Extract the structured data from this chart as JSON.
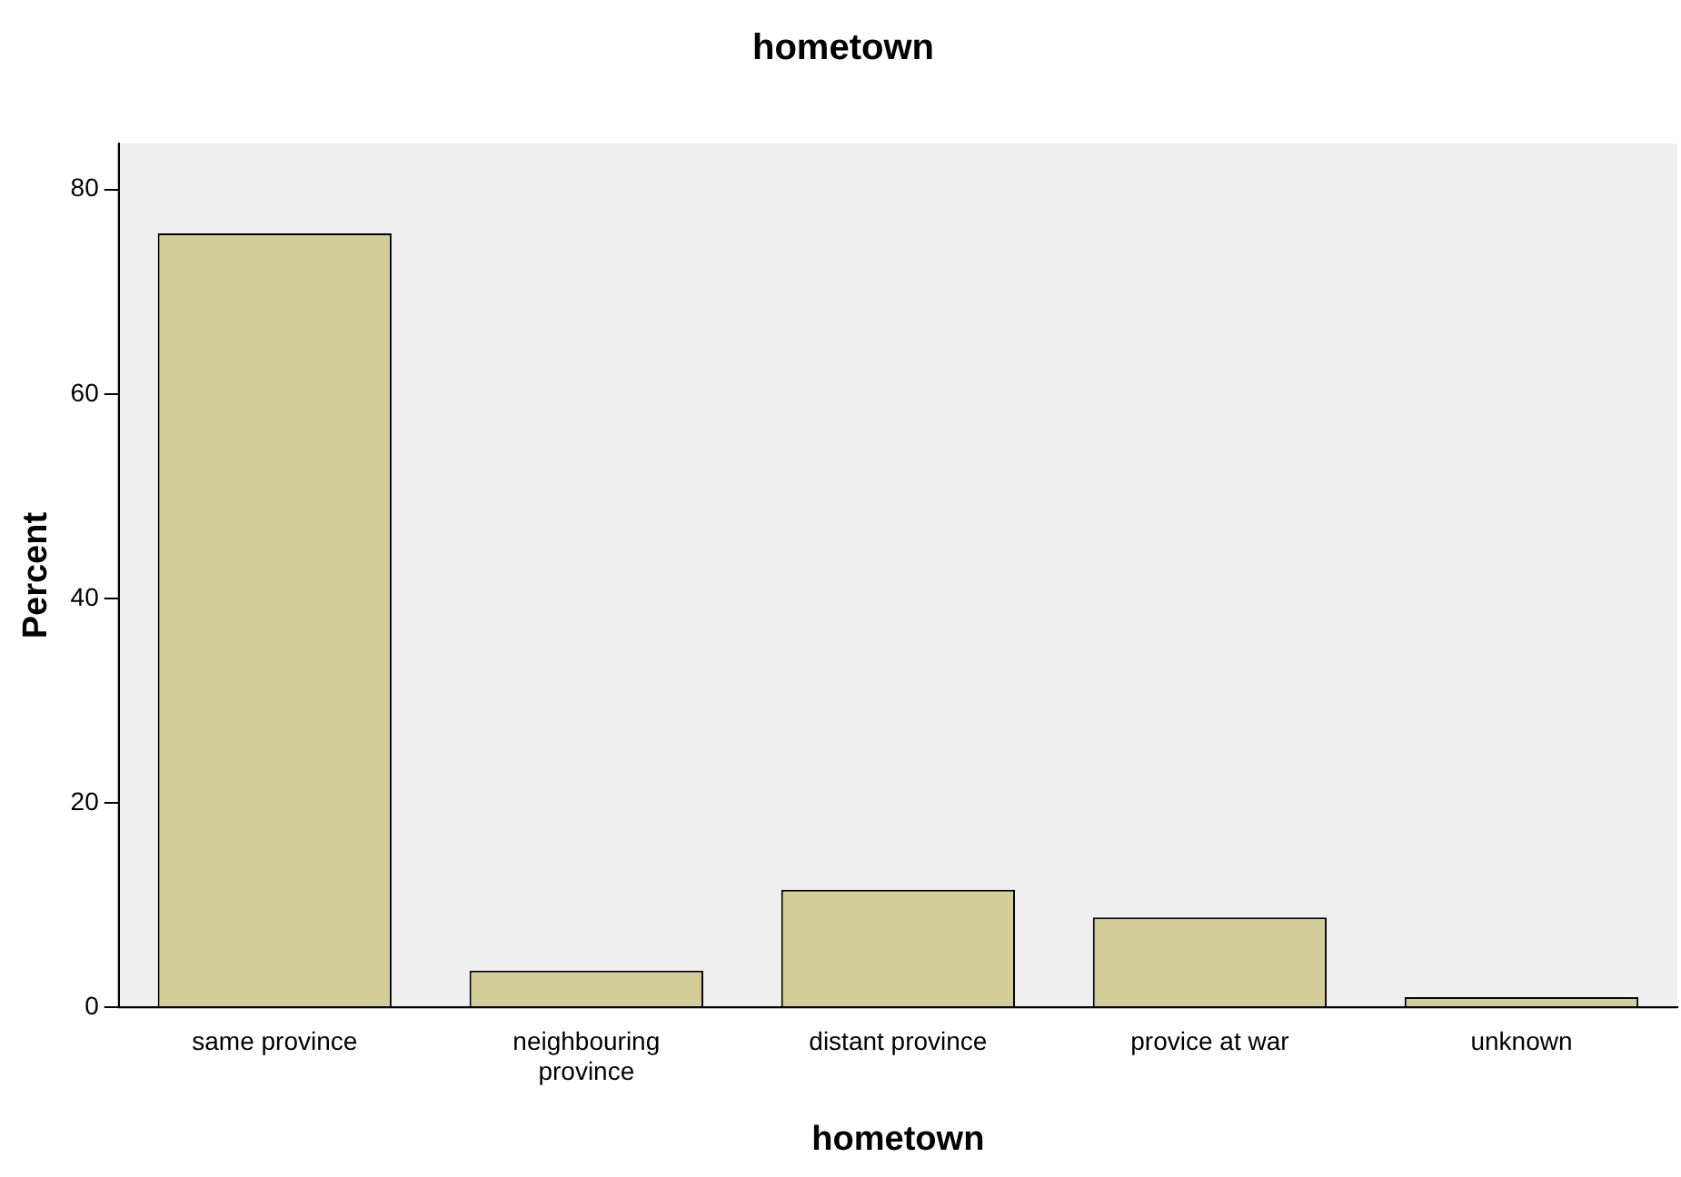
{
  "chart_data": {
    "type": "bar",
    "title": "hometown",
    "xlabel": "hometown",
    "ylabel": "Percent",
    "categories": [
      "same province",
      "neighbouring province",
      "distant province",
      "provice at war",
      "unknown"
    ],
    "values": [
      75.7,
      3.6,
      11.5,
      8.8,
      1.0
    ],
    "color": "#d3ce97",
    "ylim": [
      0,
      84.5
    ],
    "yticks": [
      0,
      20,
      40,
      60,
      80
    ],
    "grid": false,
    "legend": false
  }
}
